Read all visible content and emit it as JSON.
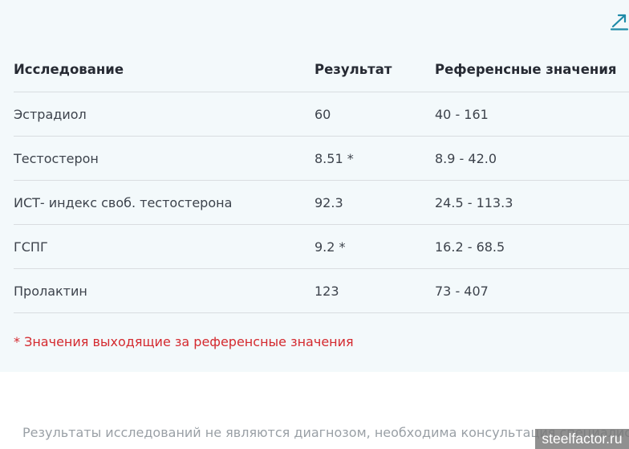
{
  "icons": {
    "expand": "expand-diagonal-icon"
  },
  "colors": {
    "panel_background": "#f3f9fb",
    "flag_red": "#d42a2f",
    "accent_teal": "#1e8ba8",
    "header_text": "#262a33",
    "body_text": "#3d434c",
    "disclaimer_text": "#9aa0a6"
  },
  "table": {
    "headers": [
      "Исследование",
      "Результат",
      "Референсные значения"
    ],
    "rows": [
      {
        "name": "Эстрадиол",
        "result": "60",
        "reference": "40 - 161",
        "flagged": false
      },
      {
        "name": "Тестостерон",
        "result": "8.51 *",
        "reference": "8.9 - 42.0",
        "flagged": true
      },
      {
        "name": "ИСТ- индекс своб. тестостерона",
        "result": "92.3",
        "reference": "24.5 - 113.3",
        "flagged": false
      },
      {
        "name": "ГСПГ",
        "result": "9.2 *",
        "reference": "16.2 - 68.5",
        "flagged": true
      },
      {
        "name": "Пролактин",
        "result": "123",
        "reference": "73 - 407",
        "flagged": false
      }
    ]
  },
  "footnote": "* Значения выходящие за референсные значения",
  "disclaimer": "Результаты исследований не являются диагнозом, необходима консультация специалиста",
  "watermark": "steelfactor.ru"
}
